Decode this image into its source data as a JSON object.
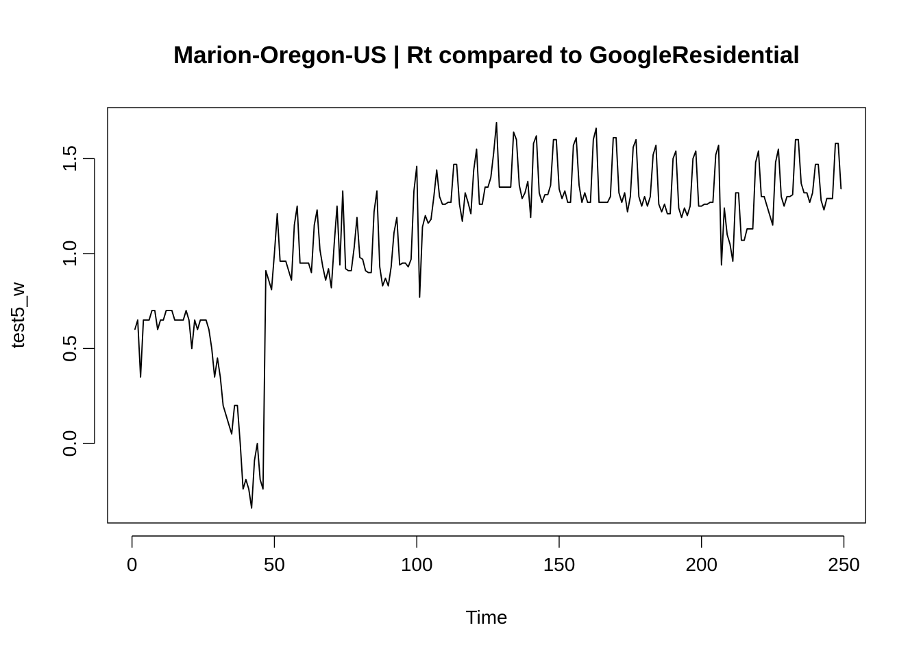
{
  "chart_data": {
    "type": "line",
    "title": "Marion-Oregon-US | Rt compared to GoogleResidential",
    "xlabel": "Time",
    "ylabel": "test5_w",
    "xlim": [
      1,
      248
    ],
    "ylim": [
      -0.34,
      1.69
    ],
    "x_ticks": [
      0,
      50,
      100,
      150,
      200,
      250
    ],
    "y_ticks": [
      0.0,
      0.5,
      1.0,
      1.5
    ],
    "x_tick_labels": [
      "0",
      "50",
      "100",
      "150",
      "200",
      "250"
    ],
    "y_tick_labels": [
      "0.0",
      "0.5",
      "1.0",
      "1.5"
    ],
    "grid": false,
    "line_color": "#000000",
    "series": [
      {
        "x_start": 1,
        "x_step": 1,
        "values": [
          0.6,
          0.65,
          0.35,
          0.65,
          0.65,
          0.65,
          0.7,
          0.7,
          0.6,
          0.65,
          0.65,
          0.7,
          0.7,
          0.7,
          0.65,
          0.65,
          0.65,
          0.65,
          0.7,
          0.65,
          0.5,
          0.65,
          0.6,
          0.65,
          0.65,
          0.65,
          0.6,
          0.5,
          0.35,
          0.45,
          0.35,
          0.2,
          0.15,
          0.1,
          0.05,
          0.2,
          0.2,
          0.0,
          -0.24,
          -0.19,
          -0.24,
          -0.34,
          -0.09,
          0.0,
          -0.19,
          -0.24,
          0.91,
          0.86,
          0.81,
          1.0,
          1.21,
          0.96,
          0.96,
          0.96,
          0.91,
          0.86,
          1.15,
          1.25,
          0.95,
          0.95,
          0.95,
          0.95,
          0.9,
          1.15,
          1.23,
          1.02,
          0.93,
          0.86,
          0.92,
          0.82,
          1.05,
          1.25,
          0.94,
          1.33,
          0.92,
          0.91,
          0.91,
          1.03,
          1.19,
          0.98,
          0.97,
          0.91,
          0.9,
          0.9,
          1.22,
          1.33,
          0.93,
          0.83,
          0.87,
          0.83,
          0.93,
          1.11,
          1.19,
          0.94,
          0.95,
          0.95,
          0.93,
          0.97,
          1.33,
          1.46,
          0.77,
          1.14,
          1.2,
          1.16,
          1.18,
          1.3,
          1.44,
          1.3,
          1.26,
          1.26,
          1.27,
          1.27,
          1.47,
          1.47,
          1.26,
          1.17,
          1.32,
          1.27,
          1.21,
          1.44,
          1.55,
          1.26,
          1.26,
          1.35,
          1.35,
          1.4,
          1.53,
          1.69,
          1.35,
          1.35,
          1.35,
          1.35,
          1.35,
          1.64,
          1.6,
          1.36,
          1.29,
          1.32,
          1.38,
          1.19,
          1.58,
          1.62,
          1.32,
          1.27,
          1.31,
          1.31,
          1.36,
          1.6,
          1.6,
          1.34,
          1.29,
          1.33,
          1.27,
          1.27,
          1.57,
          1.61,
          1.36,
          1.27,
          1.32,
          1.27,
          1.27,
          1.6,
          1.66,
          1.27,
          1.27,
          1.27,
          1.27,
          1.3,
          1.61,
          1.61,
          1.32,
          1.27,
          1.32,
          1.22,
          1.3,
          1.56,
          1.6,
          1.3,
          1.25,
          1.3,
          1.25,
          1.3,
          1.52,
          1.57,
          1.26,
          1.22,
          1.26,
          1.21,
          1.21,
          1.5,
          1.54,
          1.24,
          1.19,
          1.24,
          1.2,
          1.25,
          1.5,
          1.54,
          1.25,
          1.25,
          1.26,
          1.26,
          1.27,
          1.27,
          1.52,
          1.57,
          0.94,
          1.24,
          1.1,
          1.05,
          0.96,
          1.32,
          1.32,
          1.07,
          1.07,
          1.13,
          1.13,
          1.13,
          1.48,
          1.54,
          1.3,
          1.3,
          1.25,
          1.2,
          1.15,
          1.48,
          1.55,
          1.3,
          1.25,
          1.3,
          1.3,
          1.31,
          1.6,
          1.6,
          1.37,
          1.32,
          1.32,
          1.27,
          1.32,
          1.47,
          1.47,
          1.28,
          1.23,
          1.29,
          1.29,
          1.29,
          1.58,
          1.58,
          1.34
        ]
      }
    ]
  }
}
